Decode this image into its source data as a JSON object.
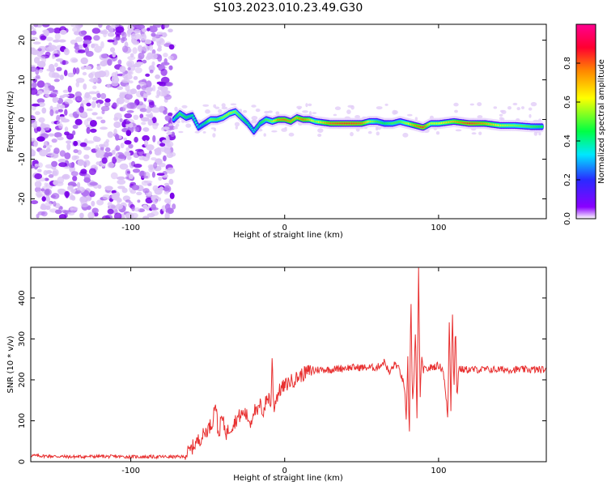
{
  "title": "S103.2023.010.23.49.G30",
  "chart_data": [
    {
      "type": "heatmap",
      "title": "S103.2023.010.23.49.G30",
      "xlabel": "Height of straight line (km)",
      "ylabel": "Frequency (Hz)",
      "xlim": [
        -165,
        170
      ],
      "ylim": [
        -25,
        24
      ],
      "x_ticks": [
        -100,
        0,
        100
      ],
      "y_ticks": [
        -20,
        -10,
        0,
        10,
        20
      ],
      "colorbar": {
        "label": "Normalized spectral amplitude",
        "range": [
          0,
          1
        ],
        "ticks": [
          "0.0",
          "0.2",
          "0.4",
          "0.6",
          "0.8"
        ],
        "tick_values": [
          0,
          0.2,
          0.4,
          0.6,
          0.8
        ],
        "colors": [
          "#ffffff",
          "#8a00ff",
          "#2a2aff",
          "#00e8ff",
          "#00ff44",
          "#ffff00",
          "#ff8800",
          "#ff0030",
          "#ff0090"
        ]
      },
      "noise_region_x": [
        -165,
        -72
      ],
      "ridge": {
        "x": [
          -72,
          -68,
          -64,
          -60,
          -56,
          -52,
          -48,
          -44,
          -40,
          -36,
          -32,
          -28,
          -24,
          -20,
          -16,
          -12,
          -8,
          -4,
          0,
          4,
          8,
          12,
          16,
          20,
          30,
          40,
          50,
          55,
          60,
          65,
          70,
          75,
          80,
          85,
          90,
          95,
          100,
          110,
          120,
          130,
          140,
          150,
          160,
          168
        ],
        "y": [
          0,
          1.5,
          0.5,
          1,
          -2,
          -1,
          0,
          0,
          0.5,
          1.5,
          2,
          0.5,
          -1,
          -3,
          -1,
          0,
          -0.5,
          0,
          0,
          -0.5,
          0.5,
          0,
          0,
          -0.5,
          -1,
          -1,
          -1,
          -0.5,
          -0.5,
          -1,
          -1,
          -0.5,
          -1,
          -1.5,
          -2,
          -1,
          -1,
          -0.5,
          -1,
          -1,
          -1.5,
          -1.5,
          -1.8,
          -1.8
        ],
        "amplitude": [
          0.35,
          0.5,
          0.45,
          0.4,
          0.35,
          0.4,
          0.55,
          0.5,
          0.55,
          0.6,
          0.55,
          0.5,
          0.4,
          0.35,
          0.45,
          0.5,
          0.55,
          0.75,
          0.8,
          0.75,
          0.7,
          0.8,
          0.7,
          0.55,
          0.8,
          0.85,
          0.8,
          0.6,
          0.5,
          0.45,
          0.5,
          0.5,
          0.6,
          0.75,
          0.85,
          0.6,
          0.6,
          0.7,
          0.85,
          0.75,
          0.6,
          0.55,
          0.5,
          0.45
        ]
      }
    },
    {
      "type": "line",
      "xlabel": "Height of straight line (km)",
      "ylabel": "SNR (10 * v/v)",
      "xlim": [
        -165,
        170
      ],
      "ylim": [
        0,
        475
      ],
      "x_ticks": [
        -100,
        0,
        100
      ],
      "y_ticks": [
        0,
        100,
        200,
        300,
        400
      ],
      "color": "#e83030",
      "series": [
        {
          "x": [
            -165,
            -140,
            -120,
            -100,
            -80,
            -66,
            -62,
            -58,
            -54,
            -50,
            -47,
            -45,
            -43,
            -41,
            -38,
            -34,
            -30,
            -26,
            -22,
            -20,
            -18,
            -16,
            -14,
            -12,
            -10,
            -9,
            -8,
            -7.5,
            -7,
            -6,
            -4,
            -2,
            0,
            3,
            6,
            10,
            15,
            20,
            25,
            30,
            40,
            50,
            60,
            65,
            68,
            70,
            72,
            75,
            78,
            79,
            80,
            81,
            82,
            83,
            84,
            85,
            86,
            87,
            88,
            89,
            90,
            92,
            95,
            100,
            103,
            106,
            107,
            108,
            109,
            110,
            111,
            112,
            113,
            115,
            120,
            130,
            140,
            150,
            160,
            170
          ],
          "y": [
            15,
            12,
            13,
            12,
            12,
            12,
            25,
            45,
            60,
            80,
            95,
            150,
            60,
            110,
            70,
            90,
            110,
            120,
            95,
            130,
            115,
            140,
            120,
            150,
            160,
            130,
            270,
            160,
            130,
            150,
            170,
            180,
            185,
            195,
            200,
            210,
            220,
            225,
            225,
            225,
            230,
            230,
            230,
            245,
            215,
            230,
            240,
            220,
            180,
            90,
            250,
            50,
            420,
            140,
            200,
            320,
            100,
            470,
            160,
            250,
            225,
            225,
            230,
            235,
            225,
            110,
            350,
            130,
            370,
            180,
            330,
            150,
            230,
            225,
            225,
            225,
            225,
            225,
            225,
            225
          ]
        }
      ]
    }
  ]
}
